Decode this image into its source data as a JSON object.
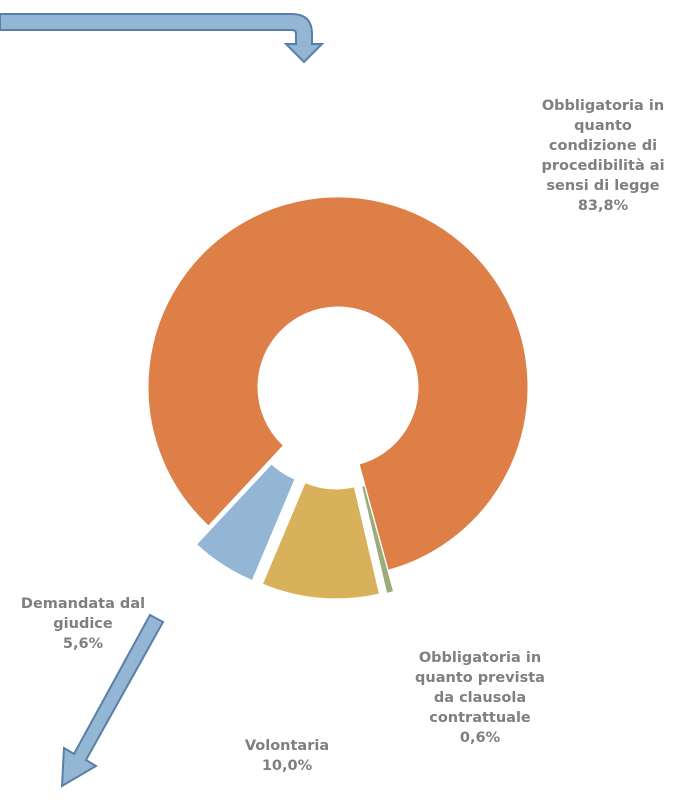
{
  "chart_data": {
    "type": "donut",
    "categories": [
      "Obbligatoria in quanto condizione di procedibilità ai sensi di legge",
      "Obbligatoria in quanto prevista da clausola contrattuale",
      "Volontaria",
      "Demandata dal giudice"
    ],
    "values": [
      83.8,
      0.6,
      10.0,
      5.6
    ],
    "value_labels": [
      "83,8%",
      "0,6%",
      "10,0%",
      "5,6%"
    ],
    "colors": [
      "#dd7f46",
      "#9bab7a",
      "#d9b15a",
      "#93b6d4"
    ]
  }
}
